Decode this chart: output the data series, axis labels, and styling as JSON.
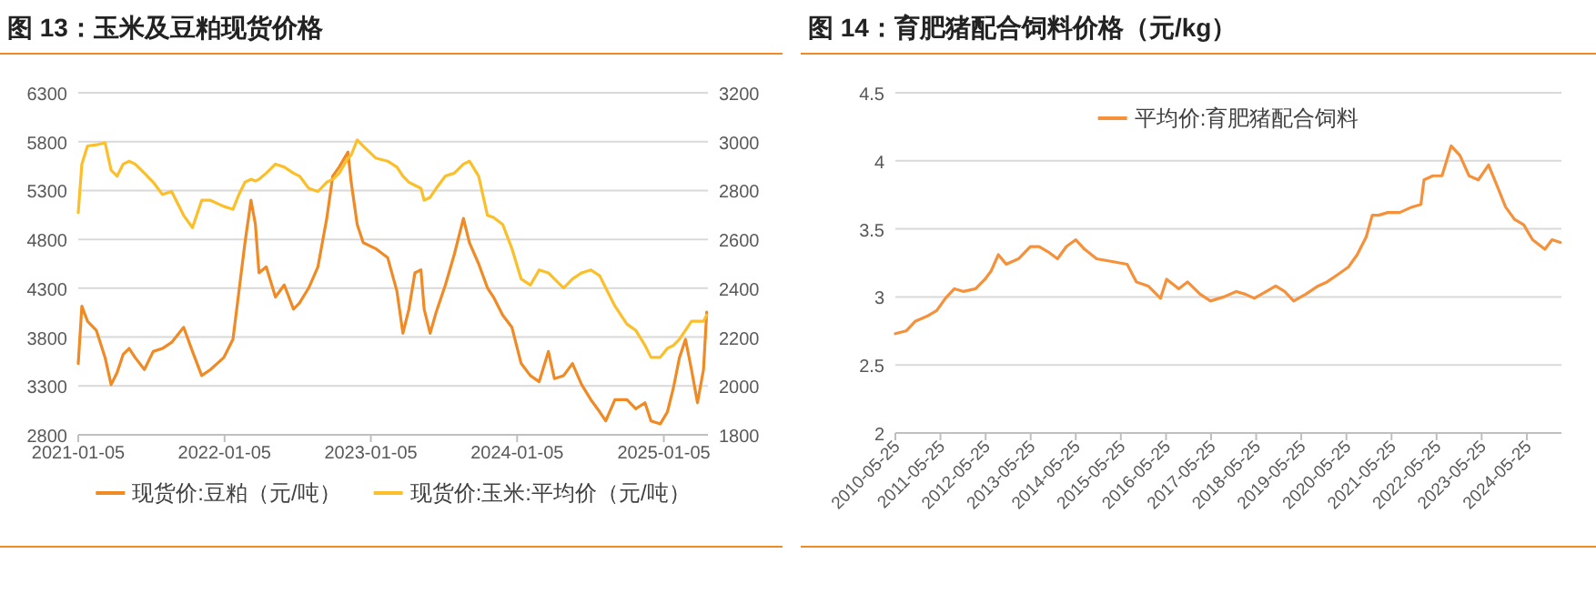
{
  "chart_data": [
    {
      "type": "line",
      "title": "图 13：玉米及豆粕现货价格",
      "legend": "bottom",
      "grid": "y",
      "marker": "none",
      "line_style": "solid",
      "xlim": [
        "2021-01-05",
        "2025-04-25"
      ],
      "xticks": [
        "2021-01-05",
        "2022-01-05",
        "2023-01-05",
        "2024-01-05",
        "2025-01-05"
      ],
      "ylim": [
        2800,
        6300
      ],
      "yticks": [
        2800,
        3300,
        3800,
        4300,
        4800,
        5300,
        5800,
        6300
      ],
      "y2lim": [
        1800,
        3200
      ],
      "y2ticks": [
        1800,
        2000,
        2200,
        2400,
        2600,
        2800,
        3000,
        3200
      ],
      "x": [
        "2021-01-05",
        "2021-01-14",
        "2021-01-28",
        "2021-02-19",
        "2021-03-13",
        "2021-03-28",
        "2021-04-12",
        "2021-04-27",
        "2021-05-12",
        "2021-05-27",
        "2021-06-19",
        "2021-07-11",
        "2021-08-03",
        "2021-08-26",
        "2021-09-25",
        "2021-10-17",
        "2021-11-09",
        "2021-12-01",
        "2022-01-03",
        "2022-01-26",
        "2022-02-10",
        "2022-02-25",
        "2022-03-12",
        "2022-03-23",
        "2022-04-01",
        "2022-04-19",
        "2022-05-12",
        "2022-06-03",
        "2022-06-26",
        "2022-07-11",
        "2022-08-03",
        "2022-08-26",
        "2022-09-17",
        "2022-10-02",
        "2022-10-18",
        "2022-11-09",
        "2022-11-17",
        "2022-12-02",
        "2022-12-17",
        "2023-01-17",
        "2023-02-16",
        "2023-03-11",
        "2023-03-26",
        "2023-04-10",
        "2023-04-25",
        "2023-05-10",
        "2023-05-18",
        "2023-06-02",
        "2023-06-17",
        "2023-07-10",
        "2023-08-01",
        "2023-08-24",
        "2023-09-08",
        "2023-10-01",
        "2023-10-23",
        "2023-11-07",
        "2023-11-30",
        "2023-12-23",
        "2024-01-15",
        "2024-02-07",
        "2024-02-29",
        "2024-03-23",
        "2024-04-07",
        "2024-04-30",
        "2024-05-22",
        "2024-06-14",
        "2024-07-07",
        "2024-07-29",
        "2024-08-13",
        "2024-09-05",
        "2024-10-05",
        "2024-10-27",
        "2024-11-19",
        "2024-12-04",
        "2024-12-27",
        "2025-01-14",
        "2025-01-29",
        "2025-02-13",
        "2025-02-28",
        "2025-03-15",
        "2025-03-30",
        "2025-04-14",
        "2025-04-22"
      ],
      "series": [
        {
          "name": "现货价:豆粕（元/吨）",
          "color": "#f08a24",
          "values": [
            3530,
            4117,
            3963,
            3870,
            3590,
            3313,
            3437,
            3622,
            3684,
            3590,
            3468,
            3653,
            3684,
            3746,
            3900,
            3653,
            3406,
            3468,
            3590,
            3777,
            4272,
            4766,
            5200,
            4952,
            4457,
            4519,
            4210,
            4334,
            4086,
            4148,
            4303,
            4519,
            5014,
            5447,
            5540,
            5694,
            5385,
            4952,
            4766,
            4705,
            4612,
            4272,
            3839,
            4086,
            4457,
            4488,
            4086,
            3839,
            4055,
            4334,
            4643,
            5014,
            4766,
            4550,
            4303,
            4210,
            4024,
            3900,
            3530,
            3406,
            3344,
            3653,
            3375,
            3406,
            3530,
            3313,
            3159,
            3035,
            2942,
            3159,
            3159,
            3066,
            3128,
            2942,
            2911,
            3035,
            3282,
            3590,
            3777,
            3468,
            3128,
            3468,
            4055
          ]
        },
        {
          "name": "现货价:玉米:平均价（元/吨）",
          "color": "#fbbf2a",
          "axis": "y2",
          "values": [
            2710,
            2908,
            2982,
            2987,
            2995,
            2883,
            2859,
            2908,
            2920,
            2908,
            2871,
            2834,
            2784,
            2796,
            2698,
            2648,
            2760,
            2760,
            2735,
            2723,
            2784,
            2834,
            2846,
            2839,
            2846,
            2871,
            2908,
            2896,
            2871,
            2859,
            2809,
            2796,
            2834,
            2846,
            2871,
            2933,
            2945,
            3007,
            2982,
            2933,
            2920,
            2896,
            2859,
            2834,
            2821,
            2809,
            2760,
            2772,
            2809,
            2859,
            2871,
            2908,
            2920,
            2859,
            2698,
            2690,
            2661,
            2562,
            2438,
            2413,
            2475,
            2463,
            2438,
            2401,
            2438,
            2463,
            2475,
            2451,
            2401,
            2327,
            2253,
            2228,
            2166,
            2117,
            2117,
            2154,
            2166,
            2191,
            2228,
            2265,
            2265,
            2265,
            2290
          ]
        }
      ]
    },
    {
      "type": "line",
      "title": "图 14：育肥猪配合饲料价格（元/kg）",
      "legend": "top",
      "grid": "y",
      "marker": "none",
      "line_style": "solid",
      "xlim": [
        "2010-05-25",
        "2025-03-01"
      ],
      "xticks": [
        "2010-05-25",
        "2011-05-25",
        "2012-05-25",
        "2013-05-25",
        "2014-05-25",
        "2015-05-25",
        "2016-05-25",
        "2017-05-25",
        "2018-05-25",
        "2019-05-25",
        "2020-05-25",
        "2021-05-25",
        "2022-05-25",
        "2023-05-25",
        "2024-05-25"
      ],
      "ylim": [
        2,
        4.5
      ],
      "yticks": [
        2,
        2.5,
        3,
        3.5,
        4,
        4.5
      ],
      "x": [
        "2010-05-25",
        "2010-08-20",
        "2010-11-01",
        "2011-02-10",
        "2011-04-25",
        "2011-07-05",
        "2011-09-15",
        "2011-11-30",
        "2012-03-05",
        "2012-05-20",
        "2012-07-08",
        "2012-09-05",
        "2012-11-08",
        "2013-02-15",
        "2013-05-22",
        "2013-08-02",
        "2013-10-15",
        "2013-12-28",
        "2014-03-10",
        "2014-05-25",
        "2014-08-05",
        "2014-11-10",
        "2015-03-15",
        "2015-07-15",
        "2015-09-28",
        "2016-01-02",
        "2016-04-10",
        "2016-05-30",
        "2016-09-05",
        "2016-11-15",
        "2017-02-25",
        "2017-05-20",
        "2017-09-05",
        "2017-12-15",
        "2018-02-25",
        "2018-05-10",
        "2018-08-15",
        "2018-10-30",
        "2019-01-10",
        "2019-03-25",
        "2019-07-01",
        "2019-10-08",
        "2019-12-20",
        "2020-03-25",
        "2020-06-10",
        "2020-08-20",
        "2020-11-01",
        "2020-12-20",
        "2021-02-10",
        "2021-04-25",
        "2021-07-30",
        "2021-11-05",
        "2022-01-18",
        "2022-02-12",
        "2022-04-25",
        "2022-07-08",
        "2022-09-20",
        "2022-11-30",
        "2023-02-12",
        "2023-04-28",
        "2023-07-20",
        "2023-09-25",
        "2023-12-05",
        "2024-02-15",
        "2024-04-30",
        "2024-07-10",
        "2024-10-18",
        "2024-12-15",
        "2025-02-20"
      ],
      "series": [
        {
          "name": "平均价:育肥猪配合饲料",
          "color": "#f5913a",
          "values": [
            2.73,
            2.75,
            2.82,
            2.86,
            2.9,
            2.99,
            3.06,
            3.04,
            3.06,
            3.13,
            3.19,
            3.31,
            3.24,
            3.28,
            3.37,
            3.37,
            3.33,
            3.28,
            3.37,
            3.42,
            3.35,
            3.28,
            3.26,
            3.24,
            3.11,
            3.08,
            2.99,
            3.13,
            3.06,
            3.11,
            3.02,
            2.97,
            3.0,
            3.04,
            3.02,
            2.99,
            3.04,
            3.08,
            3.04,
            2.97,
            3.02,
            3.08,
            3.11,
            3.17,
            3.22,
            3.31,
            3.44,
            3.6,
            3.6,
            3.62,
            3.62,
            3.66,
            3.68,
            3.86,
            3.89,
            3.89,
            4.11,
            4.04,
            3.89,
            3.86,
            3.97,
            3.82,
            3.66,
            3.57,
            3.53,
            3.42,
            3.35,
            3.42,
            3.4
          ]
        }
      ]
    }
  ]
}
